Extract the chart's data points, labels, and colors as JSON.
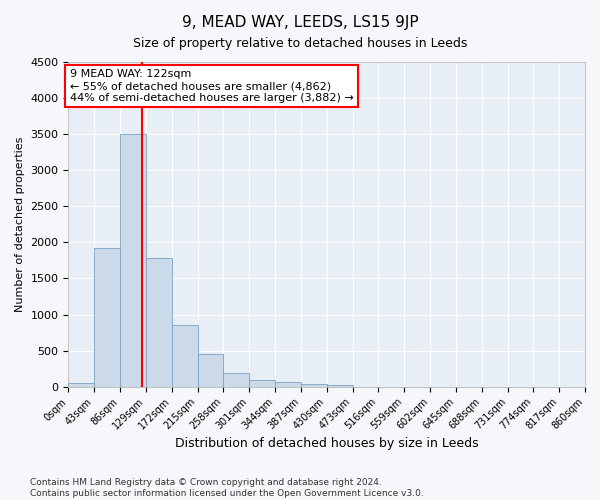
{
  "title1": "9, MEAD WAY, LEEDS, LS15 9JP",
  "title2": "Size of property relative to detached houses in Leeds",
  "xlabel": "Distribution of detached houses by size in Leeds",
  "ylabel": "Number of detached properties",
  "bar_color": "#ccd9e8",
  "bar_edge_color": "#7aa0c4",
  "vline_x": 122,
  "vline_color": "red",
  "annotation_line1": "9 MEAD WAY: 122sqm",
  "annotation_line2": "← 55% of detached houses are smaller (4,862)",
  "annotation_line3": "44% of semi-detached houses are larger (3,882) →",
  "ylim": [
    0,
    4500
  ],
  "yticks": [
    0,
    500,
    1000,
    1500,
    2000,
    2500,
    3000,
    3500,
    4000,
    4500
  ],
  "bin_edges": [
    0,
    43,
    86,
    129,
    172,
    215,
    258,
    301,
    344,
    387,
    430,
    473,
    516,
    559,
    602,
    645,
    688,
    731,
    774,
    817,
    860
  ],
  "bar_heights": [
    50,
    1920,
    3500,
    1780,
    860,
    460,
    185,
    100,
    65,
    40,
    20,
    0,
    0,
    0,
    0,
    0,
    0,
    0,
    0,
    0
  ],
  "footer": "Contains HM Land Registry data © Crown copyright and database right 2024.\nContains public sector information licensed under the Open Government Licence v3.0.",
  "bg_color": "#f5f7fa",
  "plot_bg_color": "#e8eef5",
  "grid_color": "#ffffff",
  "title1_fontsize": 11,
  "title2_fontsize": 9,
  "xlabel_fontsize": 9,
  "ylabel_fontsize": 8,
  "ytick_fontsize": 8,
  "xtick_fontsize": 7,
  "annotation_fontsize": 8
}
